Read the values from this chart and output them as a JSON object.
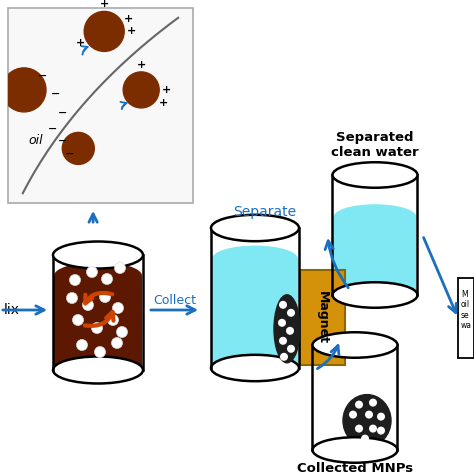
{
  "bg_color": "#ffffff",
  "oil_droplet_color": "#7B2D00",
  "water_color": "#7FE8F2",
  "magnet_color": "#D4920A",
  "arrow_color": "#1B6FBF",
  "label_color": "#1B6FBF",
  "inset_bg": "#F8F8F8",
  "inset_border": "#AAAAAA",
  "dark_mnp": "#1E1E1E",
  "orange_arrow": "#CC4400",
  "labels": {
    "collect": "Collect",
    "separate": "Separate",
    "sep_clean_water": "Separated\nclean water",
    "collected_mnps": "Collected MNPs",
    "oil": "oil",
    "magnet": "Magnet",
    "mix": "lix"
  },
  "figsize": [
    4.74,
    4.74
  ],
  "dpi": 100
}
